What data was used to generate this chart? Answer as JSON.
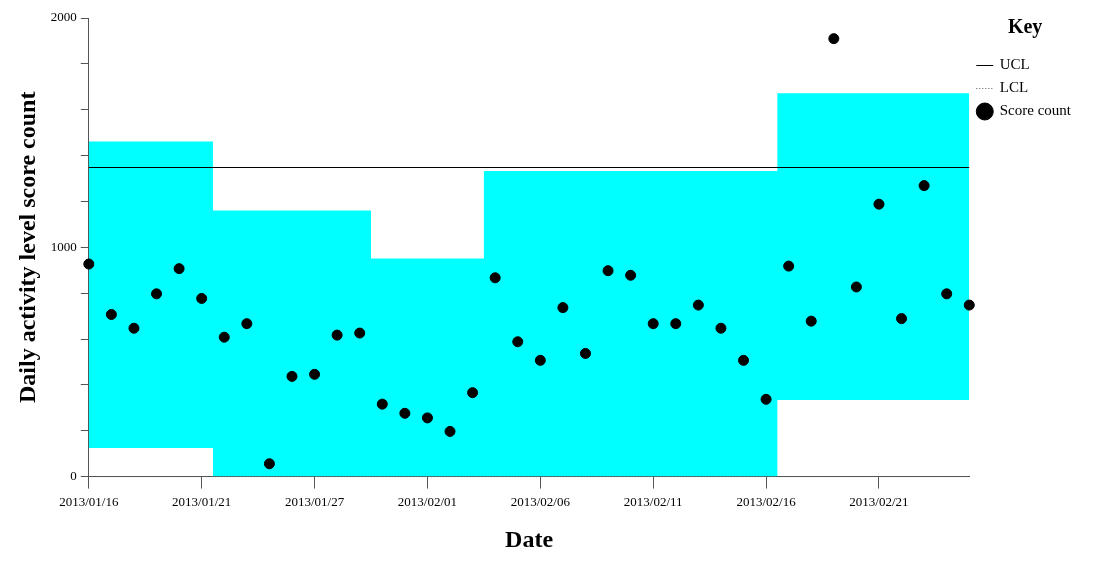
{
  "chart_data": {
    "type": "scatter",
    "xlabel": "Date",
    "ylabel": "Daily activity level score count",
    "legend_title": "Key",
    "legend": "top right",
    "marker": "circle",
    "categories": [
      "2013/01/16",
      null,
      null,
      null,
      null,
      "2013/01/21",
      null,
      null,
      null,
      null,
      "2013/01/27",
      null,
      null,
      null,
      null,
      "2013/02/01",
      null,
      null,
      null,
      null,
      "2013/02/06",
      null,
      null,
      null,
      null,
      "2013/02/11",
      null,
      null,
      null,
      null,
      "2013/02/16",
      null,
      null,
      null,
      null,
      "2013/02/21",
      null,
      null,
      null,
      null
    ],
    "ylim": [
      0,
      2000
    ],
    "yticks": [
      0,
      {
        "value": 200,
        "label": null
      },
      {
        "value": 400,
        "label": null
      },
      {
        "value": 600,
        "label": null
      },
      {
        "value": 800,
        "label": null
      },
      1000,
      {
        "value": 1200,
        "label": null
      },
      {
        "value": 1400,
        "label": null
      },
      {
        "value": 1600,
        "label": null
      },
      {
        "value": 1800,
        "label": null
      },
      2000
    ],
    "series": [
      {
        "type": "step",
        "color": "#00ffff",
        "values": [
          null,
          null,
          null,
          null,
          null,
          null,
          null,
          null,
          null,
          null,
          null,
          null,
          null,
          null,
          null,
          null,
          null,
          null,
          null,
          null,
          null,
          null,
          null,
          null,
          null,
          null,
          null,
          null,
          null,
          null,
          null,
          null,
          null,
          null,
          null,
          null,
          null,
          null,
          null,
          null
        ],
        "lower": [
          125,
          125,
          125,
          125,
          125,
          125,
          0,
          0,
          0,
          0,
          0,
          0,
          0,
          0,
          0,
          0,
          0,
          0,
          0,
          0,
          0,
          0,
          0,
          0,
          0,
          0,
          0,
          0,
          0,
          0,
          0,
          334,
          334,
          334,
          334,
          334,
          334,
          334,
          334,
          334
        ],
        "upper": [
          1461,
          1461,
          1461,
          1461,
          1461,
          1461,
          1160,
          1160,
          1160,
          1160,
          1160,
          1160,
          1160,
          951,
          951,
          951,
          951,
          951,
          1333,
          1333,
          1333,
          1333,
          1333,
          1333,
          1333,
          1333,
          1333,
          1333,
          1333,
          1333,
          1333,
          1672,
          1672,
          1672,
          1672,
          1672,
          1672,
          1672,
          1672,
          1672
        ]
      },
      {
        "name": "Score count",
        "color": "#000000",
        "values": [
          927,
          707,
          647,
          797,
          907,
          777,
          608,
          667,
          56,
          437,
          446,
          617,
          626,
          316,
          276,
          256,
          197,
          366,
          867,
          588,
          507,
          737,
          537,
          898,
          878,
          667,
          667,
          748,
          647,
          507,
          337,
          918,
          678,
          1910,
          827,
          1188,
          689,
          1269,
          797,
          748
        ]
      }
    ],
    "ref_lines": [
      {
        "axis": "y",
        "value": 1348,
        "label": "UCL",
        "color": "#000000",
        "line_style": "solid"
      },
      {
        "axis": "y",
        "value": 0,
        "label": "LCL",
        "color": "#555555",
        "line_style": "dotted"
      }
    ]
  }
}
